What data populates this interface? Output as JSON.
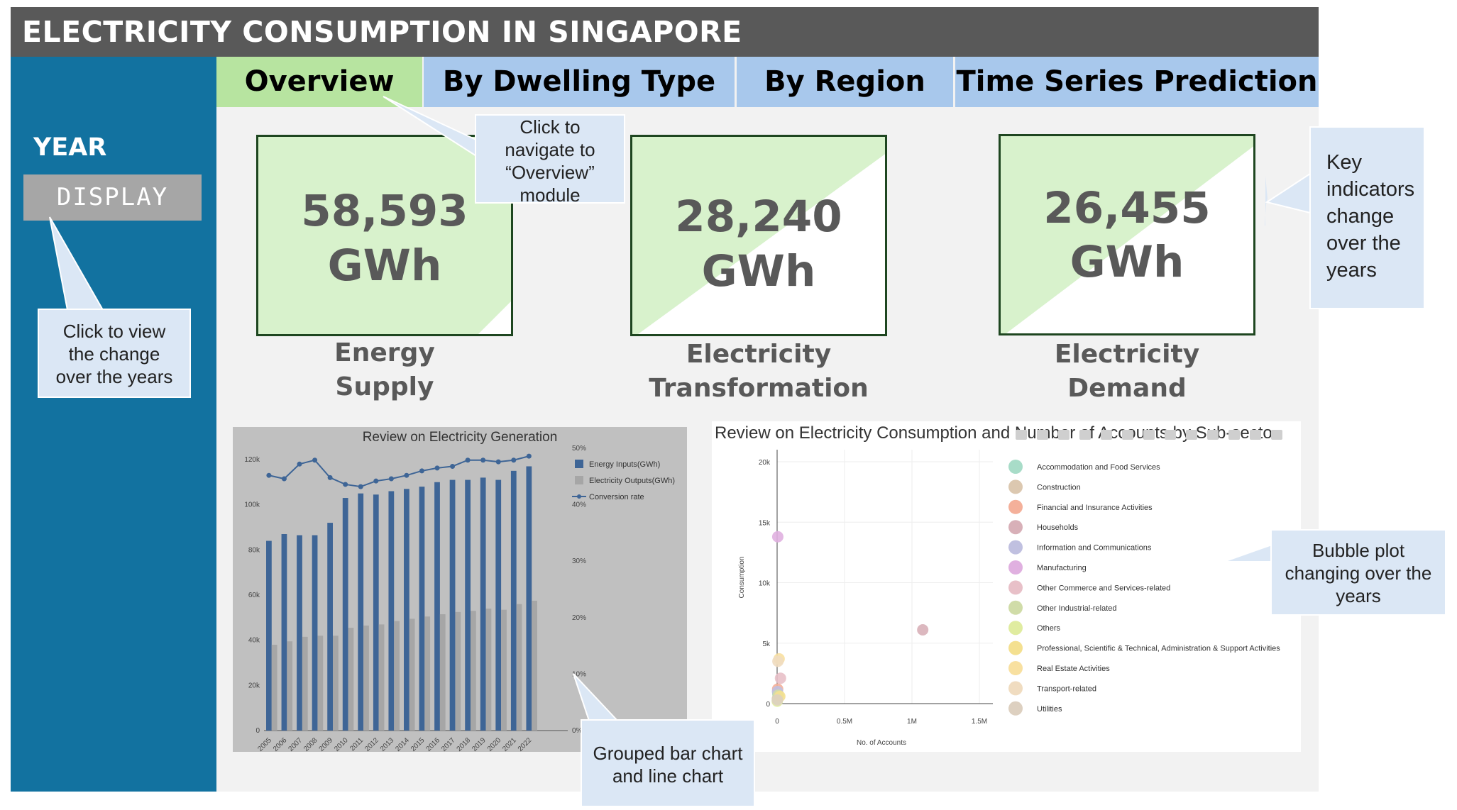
{
  "header": {
    "title": "ELECTRICITY CONSUMPTION IN SINGAPORE"
  },
  "sidebar": {
    "year_label": "YEAR",
    "display_button": "DISPLAY"
  },
  "tabs": [
    {
      "label": "Overview",
      "active": true
    },
    {
      "label": "By Dwelling Type",
      "active": false
    },
    {
      "label": "By Region",
      "active": false
    },
    {
      "label": "Time Series Prediction",
      "active": false
    }
  ],
  "kpis": [
    {
      "value": "58,593",
      "unit": "GWh",
      "label_line1": "Energy",
      "label_line2": "Supply"
    },
    {
      "value": "28,240",
      "unit": "GWh",
      "label_line1": "Electricity",
      "label_line2": "Transformation"
    },
    {
      "value": "26,455",
      "unit": "GWh",
      "label_line1": "Electricity",
      "label_line2": "Demand"
    }
  ],
  "callouts": {
    "overview": [
      "Click to",
      "navigate to",
      "“Overview”",
      "module"
    ],
    "year": [
      "Click to view",
      "the change",
      "over the years"
    ],
    "kpi": [
      "Key",
      "indicators",
      "change",
      "over the",
      "years"
    ],
    "bar": [
      "Grouped bar chart",
      "and line chart"
    ],
    "bubble": [
      "Bubble plot",
      "changing over the",
      "years"
    ]
  },
  "colors": {
    "header": "#595959",
    "sidebar": "#1272a0",
    "tab_active": "#b7e4a0",
    "tab_inactive": "#a8c8ec",
    "kpi_fill": "#d8f2cc",
    "bar_input": "#3e6596",
    "bar_output": "#a6a6a6",
    "line": "#3e6596"
  },
  "chart_data": [
    {
      "type": "bar",
      "title": "Review on Electricity Generation",
      "categories": [
        "2005",
        "2006",
        "2007",
        "2008",
        "2009",
        "2010",
        "2011",
        "2012",
        "2013",
        "2014",
        "2015",
        "2016",
        "2017",
        "2018",
        "2019",
        "2020",
        "2021",
        "2022"
      ],
      "series": [
        {
          "name": "Energy Inputs(GWh)",
          "values": [
            84000,
            87000,
            86500,
            86500,
            92000,
            103000,
            105000,
            104500,
            106000,
            107000,
            108000,
            110000,
            111000,
            111000,
            112000,
            111000,
            115000,
            117000
          ]
        },
        {
          "name": "Electricity Outputs(GWh)",
          "values": [
            38000,
            39500,
            41500,
            42000,
            42000,
            45500,
            46500,
            47000,
            48500,
            49500,
            50500,
            51500,
            52500,
            53000,
            54000,
            53500,
            56000,
            57500
          ]
        },
        {
          "name": "Conversion rate",
          "values": [
            45.2,
            44.6,
            47.2,
            47.9,
            44.8,
            43.6,
            43.2,
            44.2,
            44.6,
            45.2,
            46.0,
            46.5,
            46.8,
            47.9,
            47.9,
            47.6,
            47.9,
            48.6
          ],
          "axis": "right"
        }
      ],
      "y_ticks": [
        "0",
        "20k",
        "40k",
        "60k",
        "80k",
        "100k",
        "120k"
      ],
      "y2_ticks": [
        "0%",
        "10%",
        "20%",
        "30%",
        "40%",
        "50%"
      ],
      "ylim": [
        0,
        125000
      ],
      "y2lim": [
        0,
        50
      ]
    },
    {
      "type": "scatter",
      "title": "Review on Electricity Consumption and Number of Accounts by Sub-secto",
      "xlabel": "No. of Accounts",
      "ylabel": "Consumption",
      "x_ticks": [
        "0",
        "0.5M",
        "1M",
        "1.5M"
      ],
      "y_ticks": [
        "0",
        "5k",
        "10k",
        "15k",
        "20k"
      ],
      "xlim": [
        0,
        1600000
      ],
      "ylim": [
        0,
        21000
      ],
      "series": [
        {
          "name": "Accommodation and Food Services",
          "color": "#a8dcc8",
          "x": 5000,
          "y": 800
        },
        {
          "name": "Construction",
          "color": "#dcc8b0",
          "x": 2000,
          "y": 400
        },
        {
          "name": "Financial and Insurance Activities",
          "color": "#f4b09a",
          "x": 4000,
          "y": 1200
        },
        {
          "name": "Households",
          "color": "#d8b0b8",
          "x": 1080000,
          "y": 6100
        },
        {
          "name": "Information and Communications",
          "color": "#c0c0e0",
          "x": 3000,
          "y": 1000
        },
        {
          "name": "Manufacturing",
          "color": "#e0b0e0",
          "x": 5000,
          "y": 13800
        },
        {
          "name": "Other Commerce and Services-related",
          "color": "#e8c0c8",
          "x": 25000,
          "y": 2100
        },
        {
          "name": "Other Industrial-related",
          "color": "#d0dca8",
          "x": 8000,
          "y": 700
        },
        {
          "name": "Others",
          "color": "#e0eca0",
          "x": 1000,
          "y": 200
        },
        {
          "name": "Professional, Scientific & Technical, Administration & Support Activities",
          "color": "#f4e090",
          "x": 20000,
          "y": 600
        },
        {
          "name": "Real Estate Activities",
          "color": "#f8e0a0",
          "x": 15000,
          "y": 3700
        },
        {
          "name": "Transport-related",
          "color": "#f0dcc0",
          "x": 6000,
          "y": 3500
        },
        {
          "name": "Utilities",
          "color": "#ddd0c0",
          "x": 2000,
          "y": 300
        }
      ]
    }
  ]
}
